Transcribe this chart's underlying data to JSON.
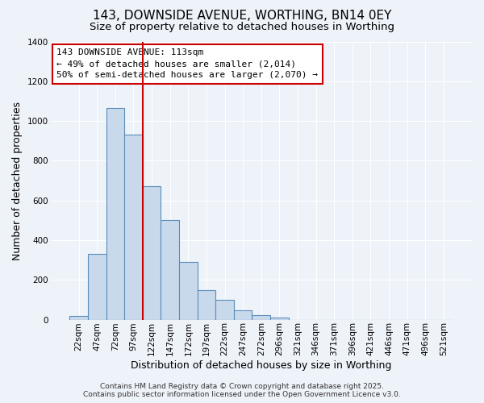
{
  "title": "143, DOWNSIDE AVENUE, WORTHING, BN14 0EY",
  "subtitle": "Size of property relative to detached houses in Worthing",
  "xlabel": "Distribution of detached houses by size in Worthing",
  "ylabel": "Number of detached properties",
  "categories": [
    "22sqm",
    "47sqm",
    "72sqm",
    "97sqm",
    "122sqm",
    "147sqm",
    "172sqm",
    "197sqm",
    "222sqm",
    "247sqm",
    "272sqm",
    "296sqm",
    "321sqm",
    "346sqm",
    "371sqm",
    "396sqm",
    "421sqm",
    "446sqm",
    "471sqm",
    "496sqm",
    "521sqm"
  ],
  "values": [
    20,
    330,
    1065,
    930,
    670,
    500,
    290,
    150,
    100,
    47,
    22,
    10,
    0,
    0,
    0,
    0,
    0,
    0,
    0,
    0,
    0
  ],
  "bar_color": "#c9d9ec",
  "bar_edge_color": "#5b8db8",
  "red_line_index": 4,
  "annotation_title": "143 DOWNSIDE AVENUE: 113sqm",
  "annotation_line1": "← 49% of detached houses are smaller (2,014)",
  "annotation_line2": "50% of semi-detached houses are larger (2,070) →",
  "annotation_box_facecolor": "#ffffff",
  "annotation_box_edgecolor": "#cc0000",
  "red_line_color": "#cc0000",
  "ylim": [
    0,
    1400
  ],
  "yticks": [
    0,
    200,
    400,
    600,
    800,
    1000,
    1200,
    1400
  ],
  "background_color": "#eef2f9",
  "grid_color": "#ffffff",
  "footer1": "Contains HM Land Registry data © Crown copyright and database right 2025.",
  "footer2": "Contains public sector information licensed under the Open Government Licence v3.0.",
  "title_fontsize": 11,
  "subtitle_fontsize": 9.5,
  "axis_label_fontsize": 9,
  "tick_fontsize": 7.5,
  "annotation_fontsize": 8,
  "footer_fontsize": 6.5
}
